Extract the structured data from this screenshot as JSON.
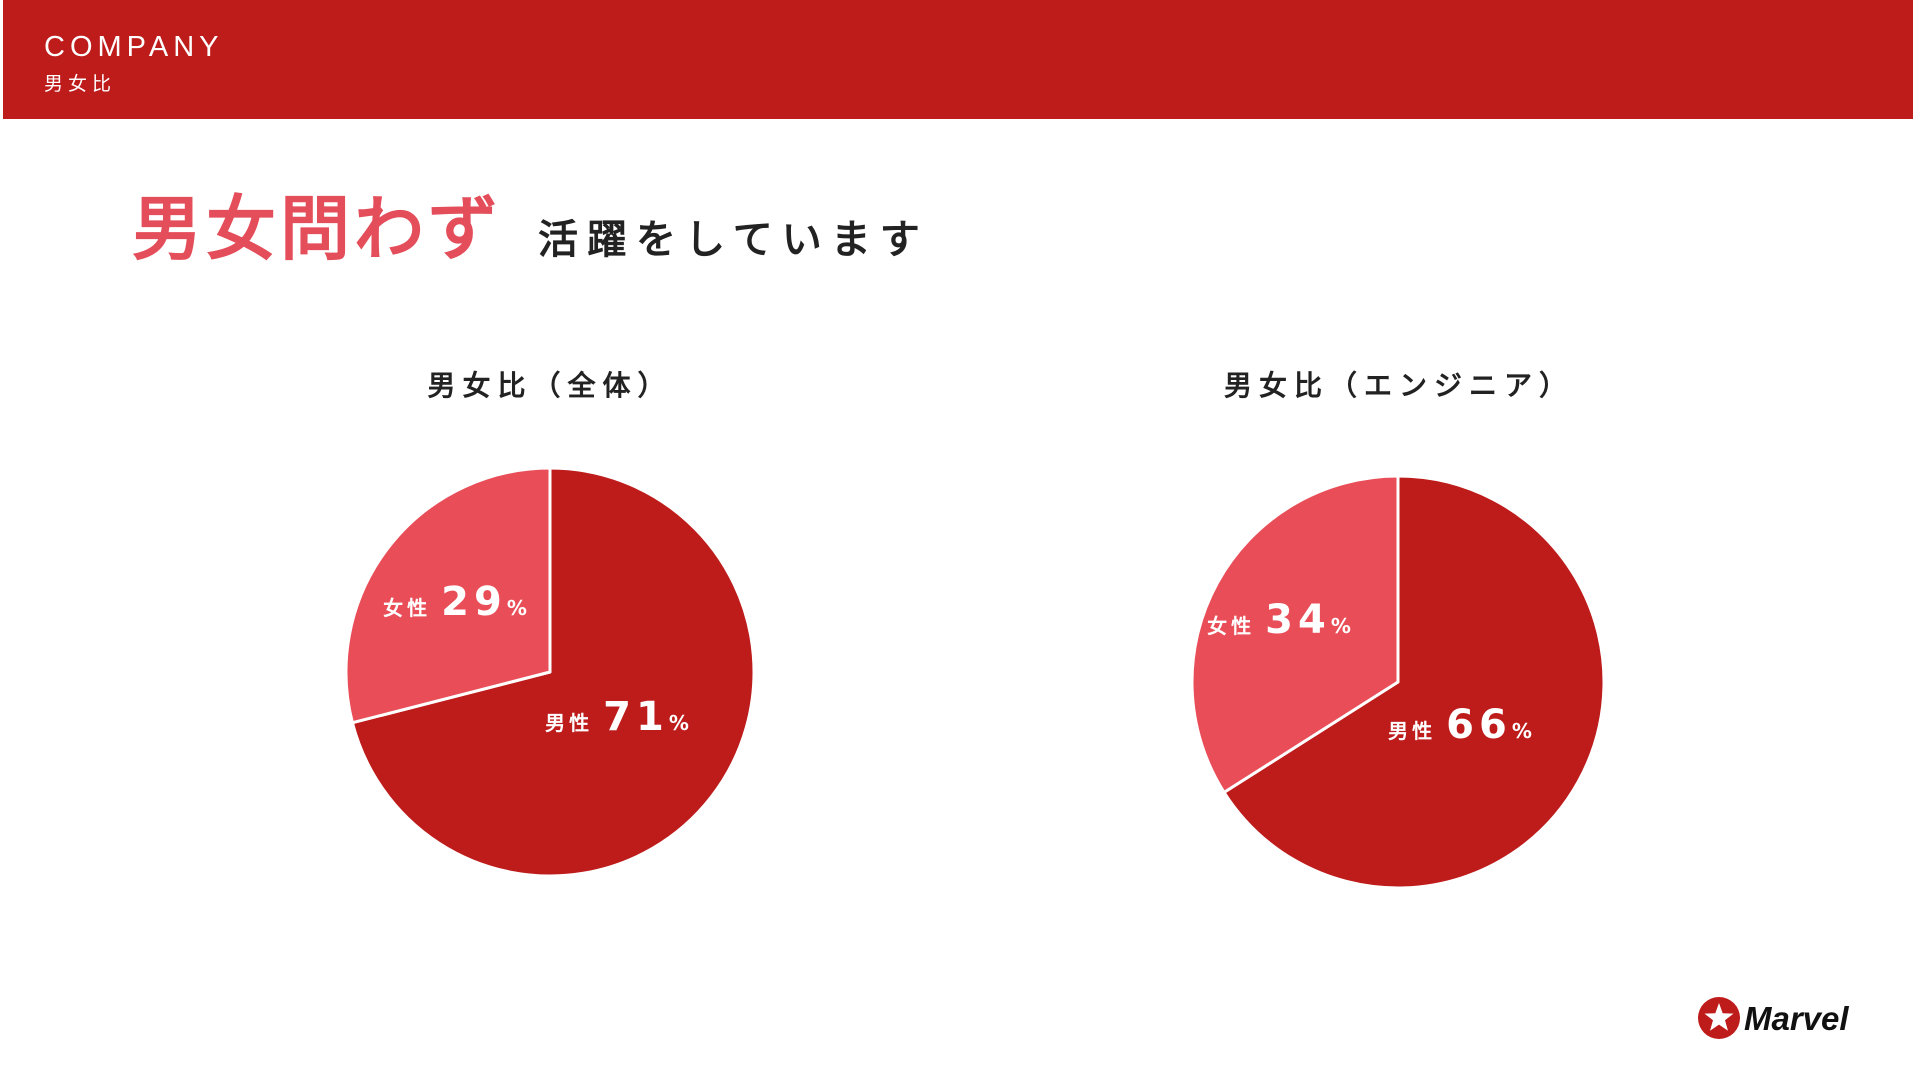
{
  "header": {
    "title": "COMPANY",
    "subtitle": "男女比"
  },
  "headline": {
    "emphasis": "男女問わず",
    "rest": "活躍をしています"
  },
  "colors": {
    "header_bar": "#be1b1b",
    "headline_emphasis": "#e44d5a",
    "male": "#be1b1b",
    "female": "#e94d58",
    "text_dark": "#222222",
    "slice_label": "#ffffff"
  },
  "logo": {
    "text": "Marvel",
    "icon": "star-circle-icon"
  },
  "chart_data": [
    {
      "type": "pie",
      "title": "男女比（全体）",
      "slices": [
        {
          "label": "男性",
          "value": 71,
          "unit": "%",
          "color": "#be1b1b"
        },
        {
          "label": "女性",
          "value": 29,
          "unit": "%",
          "color": "#e94d58"
        }
      ]
    },
    {
      "type": "pie",
      "title": "男女比（エンジニア）",
      "slices": [
        {
          "label": "男性",
          "value": 66,
          "unit": "%",
          "color": "#be1b1b"
        },
        {
          "label": "女性",
          "value": 34,
          "unit": "%",
          "color": "#e94d58"
        }
      ]
    }
  ]
}
